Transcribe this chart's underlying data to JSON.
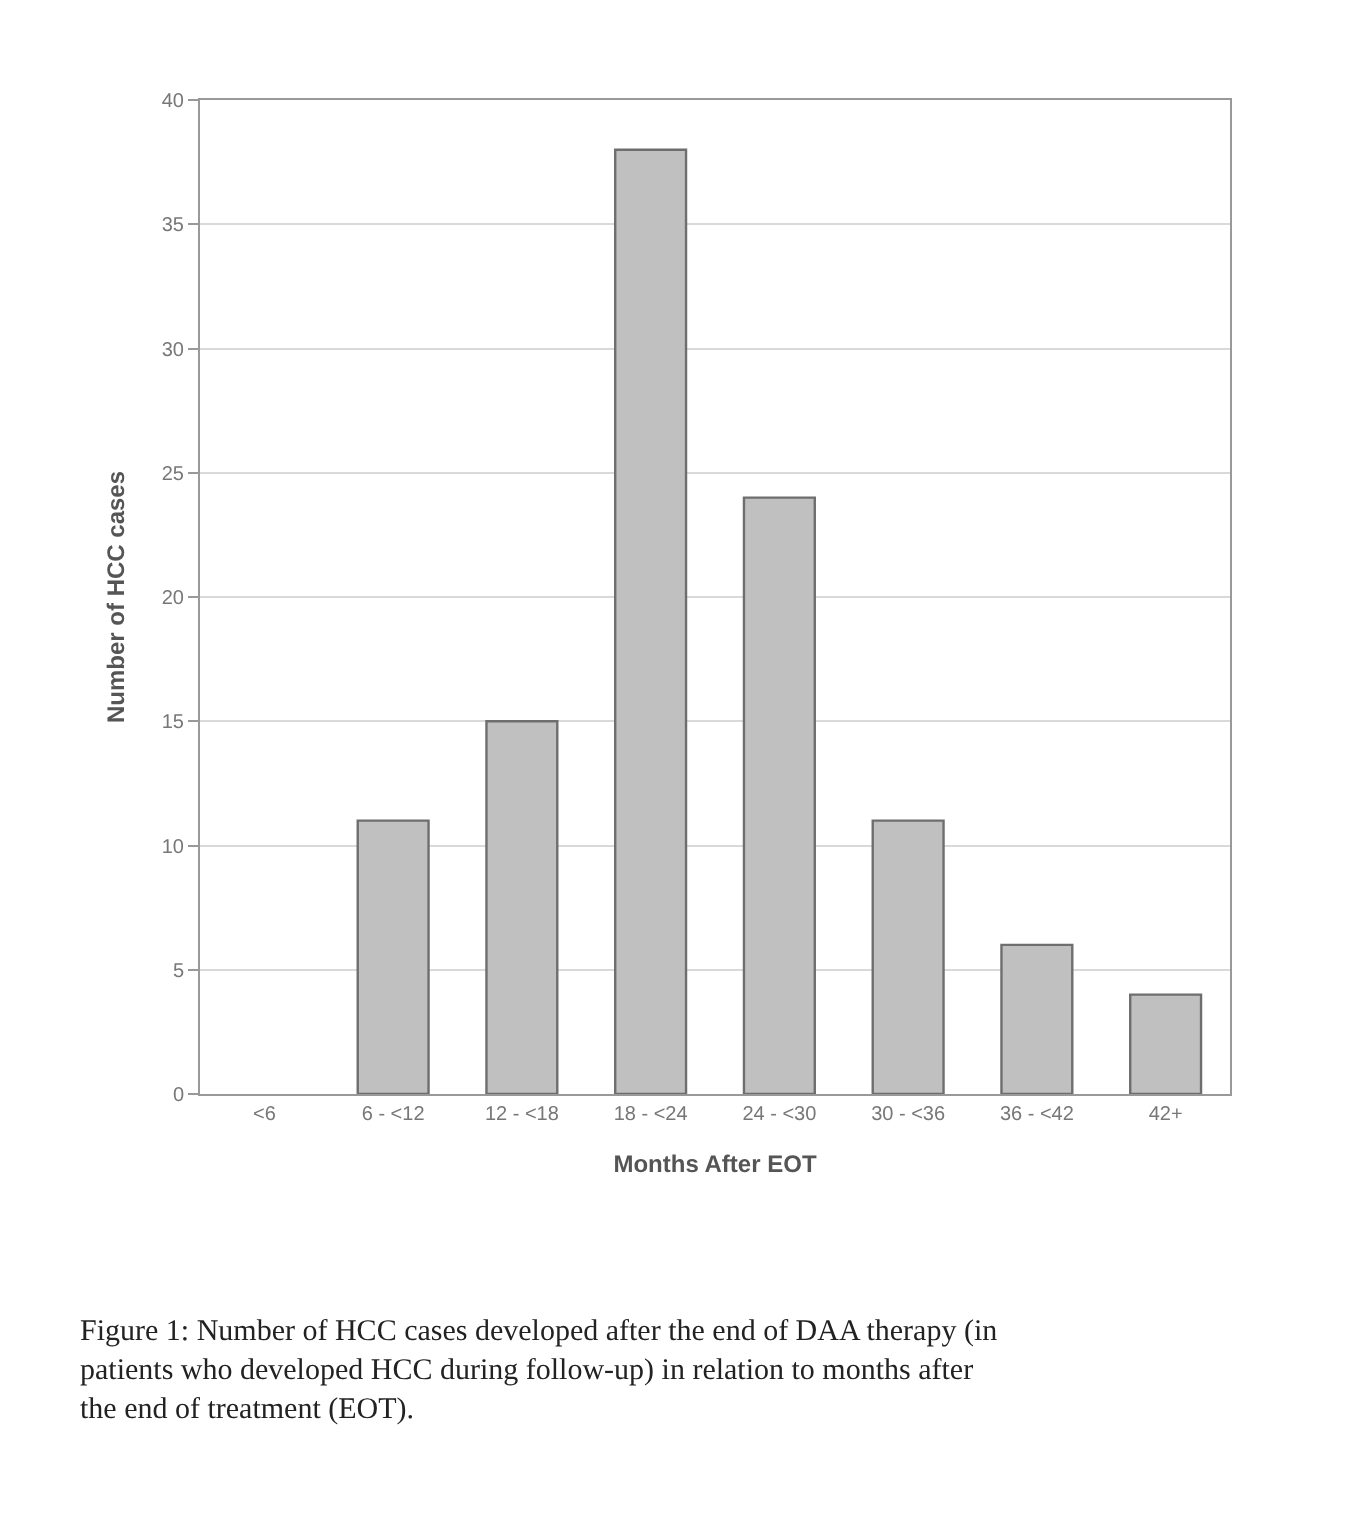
{
  "chart_data": {
    "type": "bar",
    "xlabel": "Months After EOT",
    "ylabel": "Number of HCC cases",
    "categories": [
      "<6",
      "6 - <12",
      "12 - <18",
      "18 - <24",
      "24 - <30",
      "30 - <36",
      "36 - <42",
      "42+"
    ],
    "values": [
      0,
      11,
      15,
      38,
      24,
      11,
      6,
      4
    ],
    "color": "#c0c0c0",
    "ylim": [
      0,
      40
    ],
    "yticks": [
      0,
      5,
      10,
      15,
      20,
      25,
      30,
      35,
      40
    ],
    "grid": "y",
    "legend": false,
    "annotations": [
      "Figure 1: Number of HCC cases developed after the end of DAA therapy (in patients who developed HCC during follow-up) in relation to months after the end of treatment (EOT)."
    ]
  }
}
